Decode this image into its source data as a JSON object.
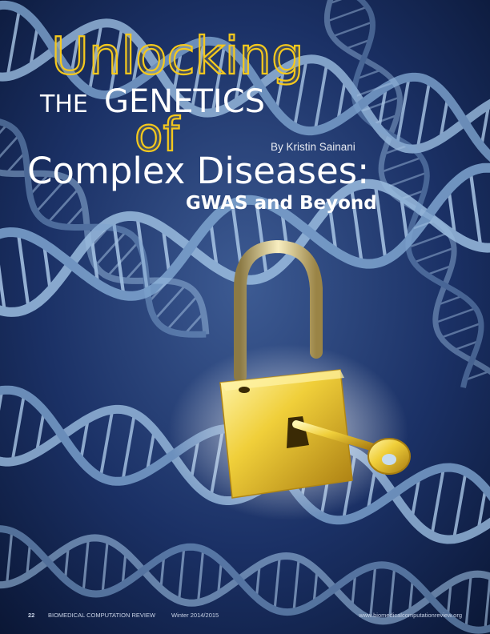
{
  "title": {
    "word1": "Unlocking",
    "word2": "THE",
    "word3": "GENETICS",
    "word4": "of",
    "word5": "Complex Diseases:",
    "subtitle": "GWAS and Beyond"
  },
  "byline": "By Kristin Sainani",
  "footer": {
    "page": "22",
    "magazine": "BIOMEDICAL COMPUTATION REVIEW",
    "issue": "Winter 2014/2015",
    "url": "www.biomedicalcomputationreview.org"
  }
}
